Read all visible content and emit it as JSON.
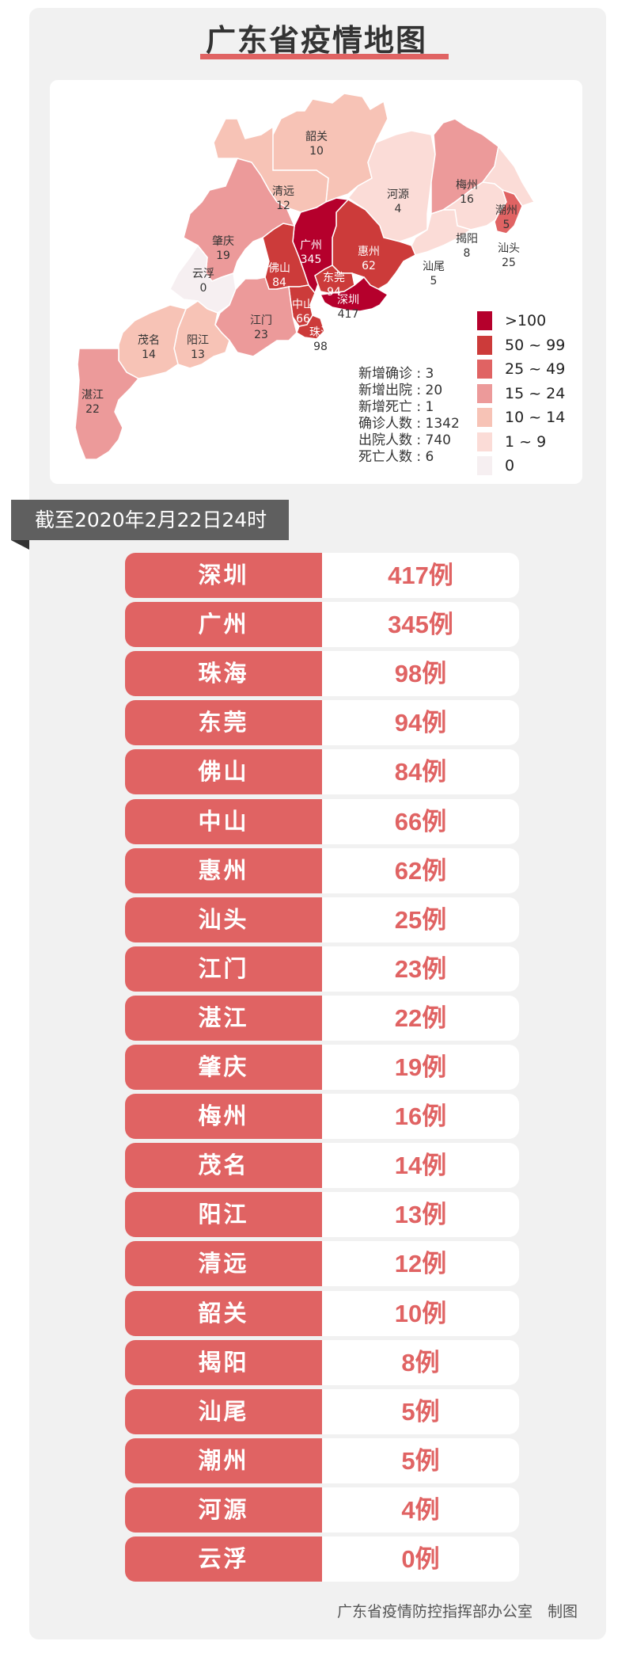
{
  "title": "广东省疫情地图",
  "map": {
    "regions": [
      {
        "name": "韶关",
        "value": "10"
      },
      {
        "name": "清远",
        "value": "12"
      },
      {
        "name": "河源",
        "value": "4"
      },
      {
        "name": "梅州",
        "value": "16"
      },
      {
        "name": "潮州",
        "value": "5"
      },
      {
        "name": "揭阳",
        "value": "8"
      },
      {
        "name": "汕头",
        "value": "25"
      },
      {
        "name": "汕尾",
        "value": "5"
      },
      {
        "name": "惠州",
        "value": "62"
      },
      {
        "name": "广州",
        "value": "345"
      },
      {
        "name": "东莞",
        "value": "94"
      },
      {
        "name": "深圳",
        "value": "417"
      },
      {
        "name": "佛山",
        "value": "84"
      },
      {
        "name": "中山",
        "value": "66"
      },
      {
        "name": "珠海",
        "value": "98"
      },
      {
        "name": "肇庆",
        "value": "19"
      },
      {
        "name": "云浮",
        "value": "0"
      },
      {
        "name": "江门",
        "value": "23"
      },
      {
        "name": "阳江",
        "value": "13"
      },
      {
        "name": "茂名",
        "value": "14"
      },
      {
        "name": "湛江",
        "value": "22"
      }
    ],
    "legend": [
      {
        "label": ">100",
        "color": "#b5002c"
      },
      {
        "label": "50 ~ 99",
        "color": "#cc3b3a"
      },
      {
        "label": "25 ~ 49",
        "color": "#e06363"
      },
      {
        "label": "15 ~ 24",
        "color": "#ec9a9a"
      },
      {
        "label": "10 ~ 14",
        "color": "#f7c3b6"
      },
      {
        "label": "1 ~ 9",
        "color": "#fbdcd7"
      },
      {
        "label": "0",
        "color": "#f6eff1"
      }
    ],
    "stats": [
      {
        "label": "新增确诊",
        "value": "3"
      },
      {
        "label": "新增出院",
        "value": "20"
      },
      {
        "label": "新增死亡",
        "value": "1"
      },
      {
        "label": "确诊人数",
        "value": "1342"
      },
      {
        "label": "出院人数",
        "value": "740"
      },
      {
        "label": "死亡人数",
        "value": "6"
      }
    ]
  },
  "banner": "截至2020年2月22日24时",
  "rows": [
    {
      "city": "深圳",
      "count": "417例"
    },
    {
      "city": "广州",
      "count": "345例"
    },
    {
      "city": "珠海",
      "count": "98例"
    },
    {
      "city": "东莞",
      "count": "94例"
    },
    {
      "city": "佛山",
      "count": "84例"
    },
    {
      "city": "中山",
      "count": "66例"
    },
    {
      "city": "惠州",
      "count": "62例"
    },
    {
      "city": "汕头",
      "count": "25例"
    },
    {
      "city": "江门",
      "count": "23例"
    },
    {
      "city": "湛江",
      "count": "22例"
    },
    {
      "city": "肇庆",
      "count": "19例"
    },
    {
      "city": "梅州",
      "count": "16例"
    },
    {
      "city": "茂名",
      "count": "14例"
    },
    {
      "city": "阳江",
      "count": "13例"
    },
    {
      "city": "清远",
      "count": "12例"
    },
    {
      "city": "韶关",
      "count": "10例"
    },
    {
      "city": "揭阳",
      "count": "8例"
    },
    {
      "city": "汕尾",
      "count": "5例"
    },
    {
      "city": "潮州",
      "count": "5例"
    },
    {
      "city": "河源",
      "count": "4例"
    },
    {
      "city": "云浮",
      "count": "0例"
    }
  ],
  "footer": "广东省疫情防控指挥部办公室　制图"
}
